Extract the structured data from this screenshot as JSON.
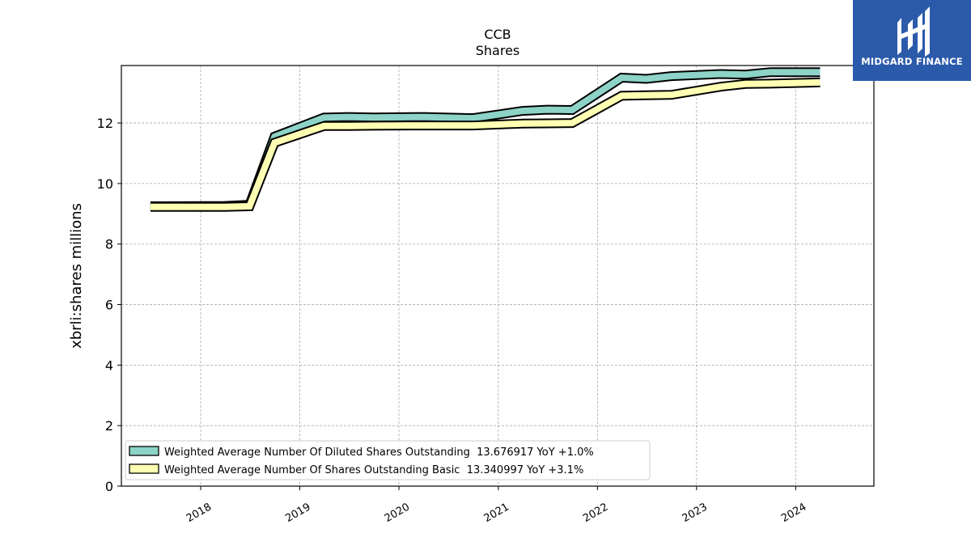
{
  "brand": {
    "name": "MIDGARD FINANCE",
    "color": "#2b5aaa"
  },
  "chart_data": {
    "type": "line",
    "title": "CCB",
    "subtitle": "Shares",
    "xlabel": "",
    "ylabel": "xbrli:shares millions",
    "xlim": [
      "2017-03-15",
      "2024-10-15"
    ],
    "ylim": [
      0,
      13.9
    ],
    "yticks": [
      0,
      2,
      4,
      6,
      8,
      10,
      12
    ],
    "xticks": [
      "2018",
      "2019",
      "2020",
      "2021",
      "2022",
      "2023",
      "2024"
    ],
    "grid": true,
    "legend_position": "lower-left",
    "series": [
      {
        "name": "Weighted Average Number Of Diluted Shares Outstanding  13.676917 YoY +1.0%",
        "color": "#8dd3c7",
        "x": [
          "2017-06-30",
          "2018-03-31",
          "2018-06-30",
          "2018-09-30",
          "2019-03-31",
          "2019-06-30",
          "2019-09-30",
          "2020-03-31",
          "2020-09-30",
          "2021-03-31",
          "2021-06-30",
          "2021-09-30",
          "2022-03-31",
          "2022-06-30",
          "2022-09-30",
          "2023-03-31",
          "2023-06-30",
          "2023-09-30",
          "2024-03-31"
        ],
        "values": [
          9.25,
          9.26,
          9.3,
          11.55,
          12.18,
          12.2,
          12.18,
          12.2,
          12.16,
          12.4,
          12.44,
          12.43,
          13.5,
          13.46,
          13.55,
          13.62,
          13.6,
          13.68,
          13.68
        ]
      },
      {
        "name": "Weighted Average Number Of Shares Outstanding Basic  13.340997 YoY +3.1%",
        "color": "#ffffb3",
        "x": [
          "2017-06-30",
          "2018-03-31",
          "2018-06-30",
          "2018-09-30",
          "2019-03-31",
          "2019-06-30",
          "2019-09-30",
          "2020-03-31",
          "2020-09-30",
          "2021-03-31",
          "2021-06-30",
          "2021-09-30",
          "2022-03-31",
          "2022-06-30",
          "2022-09-30",
          "2023-03-31",
          "2023-06-30",
          "2023-09-30",
          "2024-03-31"
        ],
        "values": [
          9.23,
          9.23,
          9.25,
          11.35,
          11.9,
          11.9,
          11.91,
          11.92,
          11.92,
          11.98,
          11.99,
          12.0,
          12.9,
          12.92,
          12.93,
          13.2,
          13.29,
          13.3,
          13.34
        ]
      }
    ]
  }
}
